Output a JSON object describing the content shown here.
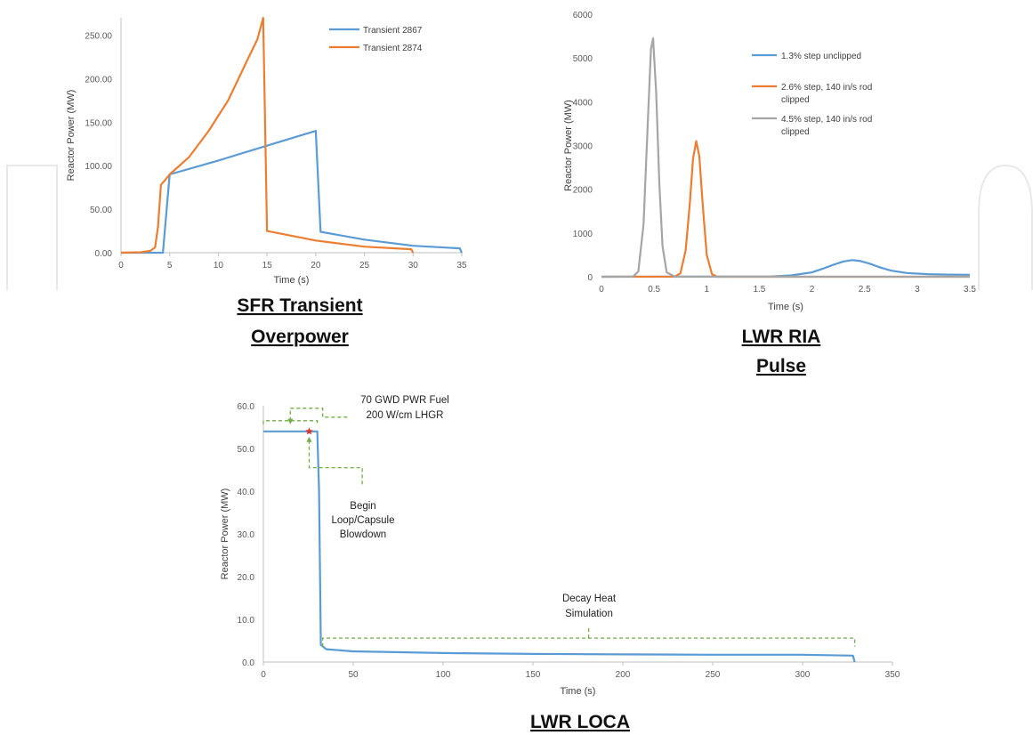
{
  "colors": {
    "blue": "#5b9bd5",
    "orange": "#ed7d31",
    "gray": "#a5a5a5",
    "green_dashed": "#70ad47",
    "marker_red": "#e0302a",
    "watermark": "#e8e8e8"
  },
  "captions": {
    "sfr": [
      "SFR Transient",
      "Overpower"
    ],
    "ria": [
      "LWR RIA",
      "Pulse"
    ],
    "loca": [
      "LWR LOCA"
    ]
  },
  "chart_data": [
    {
      "id": "sfr",
      "type": "line",
      "xlabel": "Time (s)",
      "ylabel": "Reactor Power (MW)",
      "xlim": [
        0,
        35
      ],
      "ylim": [
        0,
        270
      ],
      "xticks": [
        0,
        5,
        10,
        15,
        20,
        25,
        30,
        35
      ],
      "yticks": [
        0,
        50,
        100,
        150,
        200,
        250
      ],
      "ytick_labels": [
        "0.00",
        "50.00",
        "100.00",
        "150.00",
        "200.00",
        "250.00"
      ],
      "legend_position": "top-right",
      "series": [
        {
          "name": "Transient 2867",
          "color": "#5b9bd5",
          "x": [
            0,
            4,
            4.3,
            5,
            10,
            15,
            20,
            20.5,
            25,
            30,
            34.8,
            35
          ],
          "y": [
            0,
            0,
            0,
            90,
            106,
            123,
            140,
            24,
            15,
            8,
            5,
            0
          ]
        },
        {
          "name": "Transient 2874",
          "color": "#ed7d31",
          "x": [
            0,
            2,
            3,
            3.5,
            3.8,
            4.1,
            4.5,
            5,
            7,
            9,
            11,
            13,
            14,
            14.6,
            15,
            20,
            25,
            29.8,
            30
          ],
          "y": [
            0,
            0.5,
            2,
            6,
            30,
            78,
            83,
            90,
            110,
            140,
            175,
            222,
            245,
            270,
            25,
            14,
            7,
            4,
            0
          ]
        }
      ]
    },
    {
      "id": "ria",
      "type": "line",
      "xlabel": "Time (s)",
      "ylabel": "Reactor Power (MW)",
      "xlim": [
        0,
        3.5
      ],
      "ylim": [
        0,
        6000
      ],
      "xticks": [
        0,
        0.5,
        1,
        1.5,
        2,
        2.5,
        3,
        3.5
      ],
      "yticks": [
        0,
        1000,
        2000,
        3000,
        4000,
        5000,
        6000
      ],
      "legend_position": "top-right",
      "series": [
        {
          "name": "1.3% step unclipped",
          "color": "#5b9bd5",
          "x": [
            0,
            1.6,
            1.8,
            2.0,
            2.1,
            2.2,
            2.3,
            2.38,
            2.45,
            2.55,
            2.65,
            2.75,
            2.9,
            3.1,
            3.3,
            3.5
          ],
          "y": [
            0,
            5,
            30,
            100,
            180,
            270,
            350,
            380,
            365,
            300,
            210,
            140,
            85,
            60,
            48,
            45
          ]
        },
        {
          "name": "2.6% step, 140 in/s rod clipped",
          "color": "#ed7d31",
          "x": [
            0,
            0.7,
            0.75,
            0.8,
            0.84,
            0.87,
            0.9,
            0.93,
            0.96,
            1.0,
            1.05,
            1.1,
            3.5
          ],
          "y": [
            0,
            5,
            80,
            600,
            1700,
            2700,
            3100,
            2750,
            1700,
            500,
            60,
            0,
            0
          ]
        },
        {
          "name": "4.5% step, 140 in/s rod clipped",
          "color": "#a5a5a5",
          "x": [
            0,
            0.3,
            0.35,
            0.4,
            0.44,
            0.47,
            0.49,
            0.52,
            0.55,
            0.58,
            0.62,
            0.7,
            3.5
          ],
          "y": [
            0,
            5,
            120,
            1200,
            3500,
            5200,
            5450,
            4200,
            2100,
            700,
            100,
            0,
            0
          ]
        }
      ]
    },
    {
      "id": "loca",
      "type": "line",
      "xlabel": "Time (s)",
      "ylabel": "Reactor Power (MW)",
      "xlim": [
        0,
        350
      ],
      "ylim": [
        0,
        60
      ],
      "xticks": [
        0,
        50,
        100,
        150,
        200,
        250,
        300,
        350
      ],
      "yticks": [
        0,
        10,
        20,
        30,
        40,
        50,
        60
      ],
      "ytick_labels": [
        "0.0",
        "10.0",
        "20.0",
        "30.0",
        "40.0",
        "50.0",
        "60.0"
      ],
      "series": [
        {
          "color": "#5b9bd5",
          "x": [
            0,
            30,
            31,
            32,
            35,
            50,
            100,
            150,
            200,
            250,
            300,
            328,
            329
          ],
          "y": [
            54,
            54,
            40,
            4,
            3,
            2.5,
            2.1,
            1.9,
            1.8,
            1.7,
            1.7,
            1.5,
            0
          ]
        }
      ],
      "marker": {
        "x": 25.5,
        "y": 54,
        "shape": "star"
      },
      "annotations": {
        "fuel": [
          "70 GWD PWR Fuel",
          "200 W/cm LHGR"
        ],
        "blowdown": [
          "Begin",
          "Loop/Capsule",
          "Blowdown"
        ],
        "decay": [
          "Decay Heat",
          "Simulation"
        ]
      }
    }
  ]
}
